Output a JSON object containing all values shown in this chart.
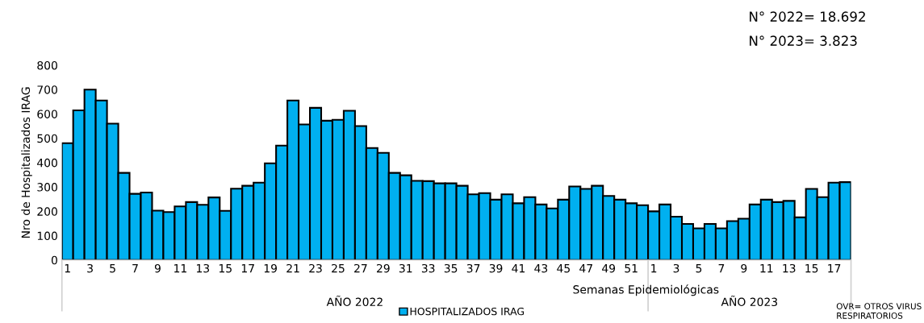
{
  "chart_data": {
    "type": "bar",
    "xlabel": "Semanas Epidemiológicas",
    "ylabel": "Nro de Hospitalizados IRAG",
    "categories": [
      "1",
      null,
      "3",
      null,
      "5",
      null,
      "7",
      null,
      "9",
      null,
      "11",
      null,
      "13",
      null,
      "15",
      null,
      "17",
      null,
      "19",
      null,
      "21",
      null,
      "23",
      null,
      "25",
      null,
      "27",
      null,
      "29",
      null,
      "31",
      null,
      "33",
      null,
      "35",
      null,
      "37",
      null,
      "39",
      null,
      "41",
      null,
      "43",
      null,
      "45",
      null,
      "47",
      null,
      "49",
      null,
      "51",
      null,
      "1",
      null,
      "3",
      null,
      "5",
      null,
      "7",
      null,
      "9",
      null,
      "11",
      null,
      "13",
      null,
      "15",
      null,
      "17",
      null
    ],
    "series": [
      {
        "name": "HOSPITALIZADOS IRAG",
        "color": "#00b0f0",
        "values": [
          480,
          615,
          700,
          655,
          560,
          358,
          272,
          277,
          203,
          197,
          220,
          238,
          227,
          257,
          202,
          293,
          305,
          318,
          397,
          470,
          655,
          557,
          625,
          572,
          576,
          613,
          550,
          460,
          440,
          358,
          348,
          325,
          324,
          315,
          315,
          305,
          270,
          275,
          248,
          270,
          233,
          258,
          228,
          212,
          248,
          302,
          292,
          305,
          263,
          248,
          233,
          225,
          200,
          228,
          178,
          148,
          130,
          148,
          130,
          160,
          170,
          228,
          248,
          238,
          243,
          175,
          292,
          258,
          318,
          320
        ]
      }
    ],
    "ylim": [
      0,
      800
    ],
    "yticks": [
      0,
      100,
      200,
      300,
      400,
      500,
      600,
      700,
      800
    ],
    "grid": false,
    "legend": "bottom",
    "annotations": [
      "AÑO 2022",
      "AÑO 2023",
      "N° 2022= 18.692",
      "N° 2023= 3.823",
      "OVR= OTROS VIRUS RESPIRATORIOS"
    ]
  }
}
